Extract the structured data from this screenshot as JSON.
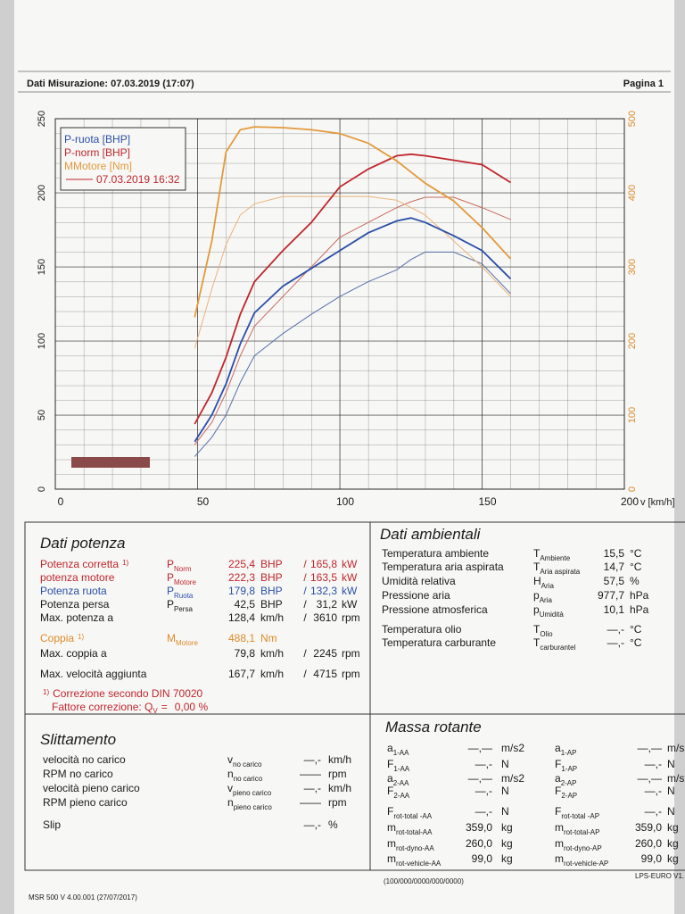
{
  "header": {
    "title": "Dati Misurazione: 07.03.2019 (17:07)",
    "page": "Pagina 1"
  },
  "chart_data": {
    "type": "line",
    "x_label": "v [km/h]",
    "x": [
      49,
      55,
      60,
      65,
      70,
      80,
      90,
      100,
      110,
      120,
      125,
      130,
      140,
      150,
      160
    ],
    "xlim": [
      0,
      200
    ],
    "xticks": [
      0,
      50,
      100,
      150,
      200
    ],
    "ylim": [
      0,
      250
    ],
    "yticks": [
      0,
      50,
      100,
      150,
      200,
      250
    ],
    "y2lim": [
      0,
      500
    ],
    "y2ticks": [
      0,
      100,
      200,
      300,
      400,
      500
    ],
    "y2_color": "#d98a2a",
    "grid": true,
    "legend": "upper left",
    "series": [
      {
        "name": "P-ruota [BHP]",
        "color": "#2b4ea8",
        "values": [
          32,
          50,
          71,
          98,
          119,
          137,
          149,
          161,
          173,
          181,
          183,
          180,
          171,
          161,
          142
        ]
      },
      {
        "name": "P-norm [BHP]",
        "color": "#c0262d",
        "values": [
          44,
          65,
          89,
          118,
          140,
          161,
          180,
          204,
          216,
          225,
          226,
          225,
          222,
          219,
          207
        ]
      },
      {
        "name": "MMotore [Nm]",
        "color": "#e39a3c",
        "axis": "y2",
        "values": [
          232,
          335,
          455,
          485,
          489,
          488,
          485,
          480,
          467,
          443,
          428,
          413,
          389,
          353,
          311
        ]
      }
    ],
    "reference": {
      "name": "07.03.2019 16:32",
      "color": "#c0262d",
      "series": [
        {
          "color": "#5872a8",
          "values": [
            22,
            35,
            50,
            72,
            90,
            105,
            118,
            130,
            140,
            148,
            155,
            160,
            160,
            152,
            132
          ]
        },
        {
          "color": "#c86a60",
          "values": [
            30,
            45,
            65,
            90,
            110,
            130,
            150,
            170,
            180,
            190,
            194,
            197,
            197,
            190,
            182
          ]
        },
        {
          "color": "#eab27a",
          "axis": "y2",
          "values": [
            190,
            270,
            330,
            370,
            385,
            395,
            395,
            395,
            395,
            390,
            380,
            370,
            335,
            300,
            260
          ]
        }
      ]
    }
  },
  "power": {
    "title": "Dati potenza",
    "rows": [
      {
        "label": "Potenza corretta",
        "note": "1)",
        "symbol": "P",
        "sub": "Norm",
        "value": "225,4",
        "unit": "BHP",
        "sep": "/",
        "value2": "165,8",
        "unit2": "kW",
        "color": "#c0262d"
      },
      {
        "label": "potenza motore",
        "symbol": "P",
        "sub": "Motore",
        "value": "222,3",
        "unit": "BHP",
        "sep": "/",
        "value2": "163,5",
        "unit2": "kW",
        "color": "#c0262d"
      },
      {
        "label": "Potenza ruota",
        "symbol": "P",
        "sub": "Ruota",
        "value": "179,8",
        "unit": "BHP",
        "sep": "/",
        "value2": "132,3",
        "unit2": "kW",
        "color": "#2b4ea8"
      },
      {
        "label": "Potenza persa",
        "symbol": "P",
        "sub": "Persa",
        "value": "42,5",
        "unit": "BHP",
        "sep": "/",
        "value2": "31,2",
        "unit2": "kW",
        "color": "#1a1a1a"
      },
      {
        "label": "Max. potenza a",
        "value": "128,4",
        "unit": "km/h",
        "sep": "/",
        "value2": "3610",
        "unit2": "rpm",
        "color": "#1a1a1a"
      },
      {
        "label": "Coppia",
        "note": "1)",
        "symbol": "M",
        "sub": "Motore",
        "value": "488,1",
        "unit": "Nm",
        "color": "#e08a2a"
      },
      {
        "label": "Max. coppia a",
        "value": "79,8",
        "unit": "km/h",
        "sep": "/",
        "value2": "2245",
        "unit2": "rpm",
        "color": "#1a1a1a"
      },
      {
        "label": "Max. velocità aggiunta",
        "value": "167,7",
        "unit": "km/h",
        "sep": "/",
        "value2": "4715",
        "unit2": "rpm",
        "color": "#1a1a1a"
      }
    ],
    "note": {
      "mark": "1)",
      "text": "Correzione secondo DIN 70020",
      "factor": "Fattore correzione: Q",
      "factor_sub": "V",
      "eq": "=",
      "value": "0,00 %"
    }
  },
  "ambient": {
    "title": "Dati ambientali",
    "rows": [
      {
        "label": "Temperatura ambiente",
        "symbol": "T",
        "sub": "Ambiente",
        "value": "15,5",
        "unit": "°C"
      },
      {
        "label": "Temperatura aria aspirata",
        "symbol": "T",
        "sub": "Aria aspirata",
        "value": "14,7",
        "unit": "°C"
      },
      {
        "label": "Umidità relativa",
        "symbol": "H",
        "sub": "Aria",
        "value": "57,5",
        "unit": "%"
      },
      {
        "label": "Pressione aria",
        "symbol": "p",
        "sub": "Aria",
        "value": "977,7",
        "unit": "hPa"
      },
      {
        "label": "Pressione atmosferica",
        "symbol": "p",
        "sub": "Umidità",
        "value": "10,1",
        "unit": "hPa"
      },
      {
        "label": "Temperatura olio",
        "symbol": "T",
        "sub": "Olio",
        "value": "—,-",
        "unit": "°C"
      },
      {
        "label": "Temperatura carburante",
        "symbol": "T",
        "sub": "carburantel",
        "value": "—,-",
        "unit": "°C"
      }
    ]
  },
  "slip": {
    "title": "Slittamento",
    "rows": [
      {
        "label": "velocità no carico",
        "symbol": "v",
        "sub": "no carico",
        "value": "—,-",
        "unit": "km/h"
      },
      {
        "label": "RPM no carico",
        "symbol": "n",
        "sub": "no carico",
        "value": "——",
        "unit": "rpm"
      },
      {
        "label": "velocità pieno carico",
        "symbol": "v",
        "sub": "pieno carico",
        "value": "—,-",
        "unit": "km/h"
      },
      {
        "label": "RPM pieno carico",
        "symbol": "n",
        "sub": "pieno carico",
        "value": "——",
        "unit": "rpm"
      },
      {
        "label": "Slip",
        "value": "—,-",
        "unit": "%"
      }
    ]
  },
  "mass": {
    "title": "Massa rotante",
    "left": [
      {
        "symbol": "a",
        "sub": "1-AA",
        "value": "—,—",
        "unit": "m/s2"
      },
      {
        "symbol": "F",
        "sub": "1-AA",
        "value": "—,-",
        "unit": "N"
      },
      {
        "symbol": "a",
        "sub": "2-AA",
        "value": "—,—",
        "unit": "m/s2"
      },
      {
        "symbol": "F",
        "sub": "2-AA",
        "value": "—,-",
        "unit": "N"
      },
      {
        "symbol": "F",
        "sub": "rot-total -AA",
        "value": "—,-",
        "unit": "N"
      },
      {
        "symbol": "m",
        "sub": "rot-total-AA",
        "value": "359,0",
        "unit": "kg"
      },
      {
        "symbol": "m",
        "sub": "rot-dyno-AA",
        "value": "260,0",
        "unit": "kg"
      },
      {
        "symbol": "m",
        "sub": "rot-vehicle-AA",
        "value": "99,0",
        "unit": "kg"
      }
    ],
    "right": [
      {
        "symbol": "a",
        "sub": "1-AP",
        "value": "—,—",
        "unit": "m/s"
      },
      {
        "symbol": "F",
        "sub": "1-AP",
        "value": "—,-",
        "unit": "N"
      },
      {
        "symbol": "a",
        "sub": "2-AP",
        "value": "—,—",
        "unit": "m/s"
      },
      {
        "symbol": "F",
        "sub": "2-AP",
        "value": "—,-",
        "unit": "N"
      },
      {
        "symbol": "F",
        "sub": "rot-total -AP",
        "value": "—,-",
        "unit": "N"
      },
      {
        "symbol": "m",
        "sub": "rot-total-AP",
        "value": "359,0",
        "unit": "kg"
      },
      {
        "symbol": "m",
        "sub": "rot-dyno-AP",
        "value": "260,0",
        "unit": "kg"
      },
      {
        "symbol": "m",
        "sub": "rot-vehicle-AP",
        "value": "99,0",
        "unit": "kg"
      }
    ]
  },
  "footer": {
    "version": "MSR 500 V 4.00.001 (27/07/2017)",
    "code": "(100/000/0000/000/0000)",
    "right": "LPS-EURO V1."
  }
}
